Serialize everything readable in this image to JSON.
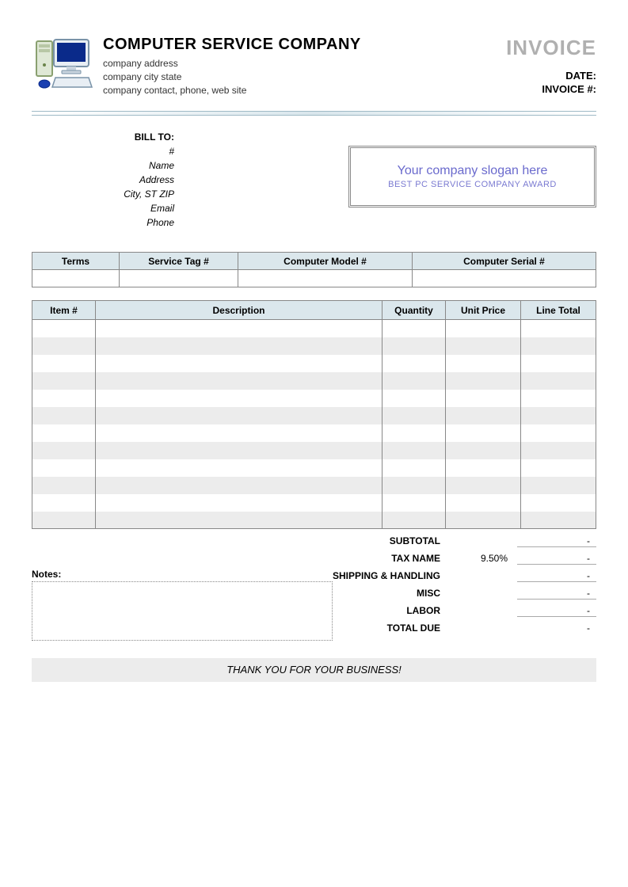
{
  "header": {
    "company_name": "COMPUTER SERVICE COMPANY",
    "address_line": "company address",
    "city_line": "company city state",
    "contact_line": "company contact, phone, web site",
    "invoice_title": "INVOICE",
    "date_label": "DATE:",
    "invoice_no_label": "INVOICE #:"
  },
  "billto": {
    "title": "BILL TO:",
    "number": "#",
    "name": "Name",
    "address": "Address",
    "city": "City, ST ZIP",
    "email": "Email",
    "phone": "Phone"
  },
  "slogan": {
    "main": "Your company slogan here",
    "sub": "BEST PC SERVICE COMPANY AWARD"
  },
  "terms": {
    "columns": [
      "Terms",
      "Service Tag #",
      "Computer Model #",
      "Computer Serial #"
    ],
    "col_widths": [
      "110px",
      "150px",
      "220px",
      "auto"
    ]
  },
  "items": {
    "columns": [
      "Item #",
      "Description",
      "Quantity",
      "Unit Price",
      "Line Total"
    ],
    "row_count": 12,
    "alt_row_color": "#ececec",
    "header_bg": "#dbe7ec",
    "border_color": "#888888"
  },
  "totals": {
    "subtotal_label": "SUBTOTAL",
    "tax_label": "TAX NAME",
    "tax_pct": "9.50%",
    "shipping_label": "SHIPPING & HANDLING",
    "misc_label": "MISC",
    "labor_label": "LABOR",
    "total_due_label": "TOTAL DUE",
    "dash": "-"
  },
  "notes_label": "Notes:",
  "thanks": "THANK YOU FOR YOUR BUSINESS!",
  "colors": {
    "header_bg": "#dbe7ec",
    "alt_row": "#ececec",
    "slogan_text": "#6a6acd",
    "invoice_title": "#b0b0b0",
    "divider_border": "#9fbac6"
  }
}
